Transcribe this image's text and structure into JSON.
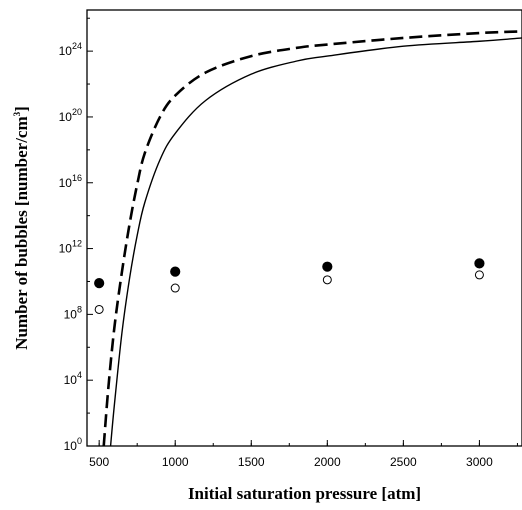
{
  "chart_data": {
    "type": "scatter",
    "xlabel": "Initial saturation pressure [atm]",
    "ylabel_main": "Number of bubbles [number/cm",
    "ylabel_sup": "3",
    "ylabel_end": "]",
    "xlim": [
      420,
      3280
    ],
    "ylog_lim": [
      0,
      26.5
    ],
    "x_ticks": [
      {
        "value": 500,
        "label": "500"
      },
      {
        "value": 1000,
        "label": "1000"
      },
      {
        "value": 1500,
        "label": "1500"
      },
      {
        "value": 2000,
        "label": "2000"
      },
      {
        "value": 2500,
        "label": "2500"
      },
      {
        "value": 3000,
        "label": "3000"
      }
    ],
    "y_ticks": [
      {
        "exp": 0,
        "base": "10",
        "sup": "0"
      },
      {
        "exp": 4,
        "base": "10",
        "sup": "4"
      },
      {
        "exp": 8,
        "base": "10",
        "sup": "8"
      },
      {
        "exp": 12,
        "base": "10",
        "sup": "12"
      },
      {
        "exp": 16,
        "base": "10",
        "sup": "16"
      },
      {
        "exp": 20,
        "base": "10",
        "sup": "20"
      },
      {
        "exp": 24,
        "base": "10",
        "sup": "24"
      }
    ],
    "series": [
      {
        "style": "dashed-line",
        "x": [
          530,
          560,
          600,
          650,
          700,
          750,
          800,
          900,
          1000,
          1200,
          1500,
          1800,
          2000,
          2500,
          3000,
          3280
        ],
        "log10_y": [
          0,
          3.5,
          7.2,
          10.6,
          13.5,
          15.9,
          17.8,
          20.0,
          21.3,
          22.7,
          23.7,
          24.2,
          24.4,
          24.8,
          25.1,
          25.2
        ]
      },
      {
        "style": "solid-line",
        "x": [
          575,
          600,
          650,
          700,
          750,
          800,
          900,
          1000,
          1200,
          1500,
          1800,
          2000,
          2500,
          3000,
          3280
        ],
        "log10_y": [
          0,
          2.5,
          6.9,
          10.2,
          12.8,
          14.8,
          17.4,
          19.0,
          21.0,
          22.6,
          23.4,
          23.7,
          24.3,
          24.6,
          24.8
        ]
      },
      {
        "style": "filled-circles",
        "x": [
          500,
          1000,
          2000,
          3000
        ],
        "log10_y": [
          9.9,
          10.6,
          10.9,
          11.1
        ]
      },
      {
        "style": "open-circles",
        "x": [
          500,
          1000,
          2000,
          3000
        ],
        "log10_y": [
          8.3,
          9.6,
          10.1,
          10.4
        ]
      }
    ]
  }
}
